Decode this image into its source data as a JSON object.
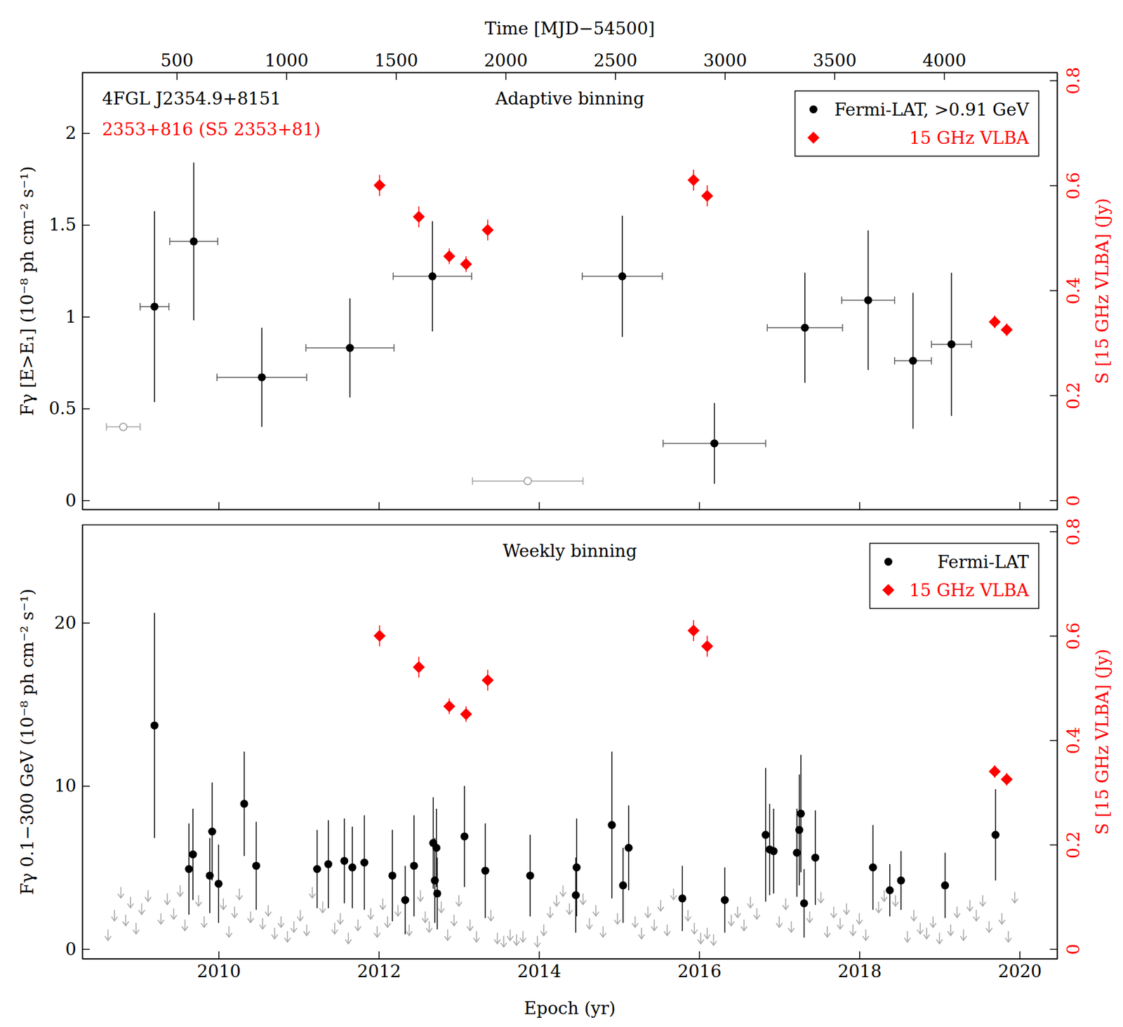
{
  "chart_data": [
    {
      "type": "scatter",
      "title": "Adaptive binning",
      "annotations": [
        {
          "text": "4FGL J2354.9+8151",
          "color": "#000000"
        },
        {
          "text": "2353+816 (S5 2353+81)",
          "color": "#ff0000"
        }
      ],
      "x2_label": "Time [MJD−54500]",
      "y_label": "Fγ [E>E₁] (10⁻⁸ ph cm⁻² s⁻¹)",
      "y2_label": "S [15 GHz VLBA] (Jy)",
      "xlim": [
        2008.3,
        2020.47
      ],
      "xticks": [
        2010,
        2012,
        2014,
        2016,
        2018,
        2020
      ],
      "x2lim": [
        70,
        4516
      ],
      "x2ticks": [
        500,
        1000,
        1500,
        2000,
        2500,
        3000,
        3500,
        4000
      ],
      "ylim": [
        -0.05,
        2.33
      ],
      "yticks": [
        0,
        0.5,
        1,
        1.5,
        2
      ],
      "y2lim": [
        -0.0175,
        0.815
      ],
      "y2ticks": [
        0,
        0.2,
        0.4,
        0.6,
        0.8
      ],
      "tick_labels": "y",
      "legend": "top-right",
      "series": [
        {
          "name": "Fermi-LAT, >0.91 GeV",
          "color": "#000000",
          "marker": "circle",
          "x": [
            2009.2,
            2009.69,
            2010.54,
            2011.64,
            2012.67,
            2015.04,
            2016.19,
            2017.32,
            2018.11,
            2018.67,
            2019.15
          ],
          "values": [
            1.055,
            1.41,
            0.67,
            0.83,
            1.22,
            1.22,
            0.31,
            0.94,
            1.09,
            0.76,
            0.85
          ],
          "errors": [
            0.52,
            0.43,
            0.27,
            0.27,
            0.3,
            0.33,
            0.22,
            0.3,
            0.38,
            0.37,
            0.39
          ],
          "x_errors": [
            0.18,
            0.3,
            0.56,
            0.55,
            0.49,
            0.5,
            0.64,
            0.47,
            0.33,
            0.23,
            0.25
          ]
        },
        {
          "color": "#a0a0a0",
          "marker": "open-circle",
          "x": [
            2008.81,
            2013.86
          ],
          "values": [
            0.4,
            0.105
          ],
          "x_errors": [
            0.21,
            0.69
          ]
        },
        {
          "name": "15 GHz VLBA",
          "color": "#ff0000",
          "marker": "diamond",
          "axis": "y2",
          "x": [
            2012.01,
            2012.5,
            2012.88,
            2013.09,
            2013.36,
            2015.93,
            2016.1,
            2019.69,
            2019.84
          ],
          "values": [
            0.6,
            0.54,
            0.465,
            0.45,
            0.515,
            0.61,
            0.58,
            0.34,
            0.325
          ],
          "errors": [
            0.02,
            0.02,
            0.015,
            0.015,
            0.02,
            0.02,
            0.02,
            0.012,
            0.012
          ]
        }
      ]
    },
    {
      "type": "scatter",
      "title": "Weekly binning",
      "x_label": "Epoch (yr)",
      "y_label": "Fγ 0.1−300 GeV (10⁻⁸ ph cm⁻² s⁻¹)",
      "y2_label": "S [15 GHz VLBA] (Jy)",
      "xlim": [
        2008.3,
        2020.47
      ],
      "xticks": [
        2010,
        2012,
        2014,
        2016,
        2018,
        2020
      ],
      "ylim": [
        -0.6,
        26
      ],
      "yticks": [
        0,
        10,
        20
      ],
      "y2lim": [
        -0.01875,
        0.8125
      ],
      "y2ticks": [
        0,
        0.2,
        0.4,
        0.6,
        0.8
      ],
      "legend": "top-right",
      "series": [
        {
          "name": "Fermi-LAT",
          "color": "#000000",
          "marker": "circle",
          "x": [
            2009.2,
            2009.63,
            2009.68,
            2009.89,
            2009.92,
            2010.0,
            2010.32,
            2010.47,
            2011.23,
            2011.37,
            2011.57,
            2011.67,
            2011.82,
            2012.17,
            2012.33,
            2012.44,
            2012.68,
            2012.7,
            2012.72,
            2012.73,
            2013.07,
            2013.33,
            2013.89,
            2014.46,
            2014.47,
            2014.91,
            2015.05,
            2015.12,
            2015.79,
            2016.32,
            2016.83,
            2016.88,
            2016.93,
            2017.22,
            2017.25,
            2017.27,
            2017.31,
            2017.45,
            2018.17,
            2018.38,
            2018.52,
            2019.07,
            2019.7
          ],
          "values": [
            13.7,
            4.9,
            5.8,
            4.5,
            7.2,
            4.0,
            8.9,
            5.1,
            4.9,
            5.2,
            5.4,
            5.0,
            5.3,
            4.5,
            3.0,
            5.1,
            6.5,
            4.2,
            6.2,
            3.4,
            6.9,
            4.8,
            4.5,
            3.3,
            5.0,
            7.6,
            3.9,
            6.2,
            3.1,
            3.0,
            7.0,
            6.1,
            6.0,
            5.9,
            7.3,
            8.3,
            2.8,
            5.6,
            5.0,
            3.6,
            4.2,
            3.9,
            7.0
          ],
          "errors": [
            6.9,
            2.8,
            2.8,
            2.3,
            3.0,
            2.4,
            3.2,
            2.7,
            2.4,
            2.7,
            2.6,
            2.5,
            2.9,
            2.8,
            2.1,
            3.1,
            2.8,
            2.6,
            2.4,
            2.2,
            3.1,
            2.9,
            2.5,
            2.3,
            3.0,
            4.5,
            2.3,
            2.6,
            2.0,
            2.0,
            4.1,
            2.8,
            2.6,
            2.7,
            3.4,
            3.6,
            2.1,
            2.9,
            2.6,
            1.6,
            1.8,
            2.0,
            2.8
          ]
        },
        {
          "color": "#a8a8a8",
          "marker": "arrow-down",
          "x": [
            2008.62,
            2008.7,
            2008.78,
            2008.84,
            2008.9,
            2008.97,
            2009.04,
            2009.12,
            2009.28,
            2009.36,
            2009.44,
            2009.52,
            2009.58,
            2009.75,
            2009.82,
            2010.06,
            2010.13,
            2010.2,
            2010.26,
            2010.4,
            2010.55,
            2010.62,
            2010.7,
            2010.78,
            2010.86,
            2010.94,
            2011.02,
            2011.1,
            2011.17,
            2011.3,
            2011.45,
            2011.52,
            2011.62,
            2011.74,
            2011.9,
            2011.98,
            2012.05,
            2012.11,
            2012.24,
            2012.38,
            2012.52,
            2012.58,
            2012.63,
            2012.78,
            2012.86,
            2012.94,
            2013.0,
            2013.14,
            2013.22,
            2013.4,
            2013.48,
            2013.56,
            2013.64,
            2013.72,
            2013.8,
            2013.98,
            2014.06,
            2014.14,
            2014.22,
            2014.3,
            2014.38,
            2014.55,
            2014.63,
            2014.71,
            2014.8,
            2014.98,
            2015.2,
            2015.28,
            2015.36,
            2015.44,
            2015.52,
            2015.6,
            2015.68,
            2015.86,
            2015.94,
            2016.02,
            2016.1,
            2016.18,
            2016.4,
            2016.48,
            2016.56,
            2016.64,
            2016.72,
            2017.0,
            2017.08,
            2017.15,
            2017.38,
            2017.52,
            2017.6,
            2017.68,
            2017.76,
            2017.84,
            2017.92,
            2018.0,
            2018.08,
            2018.24,
            2018.31,
            2018.45,
            2018.6,
            2018.68,
            2018.76,
            2018.84,
            2018.92,
            2019.0,
            2019.14,
            2019.22,
            2019.3,
            2019.38,
            2019.46,
            2019.54,
            2019.62,
            2019.78,
            2019.86,
            2019.94
          ],
          "values": [
            1.2,
            2.4,
            3.8,
            2.1,
            3.2,
            1.6,
            2.8,
            3.6,
            2.2,
            3.4,
            2.5,
            3.9,
            1.8,
            3.3,
            2.0,
            3.1,
            1.4,
            2.6,
            3.7,
            2.3,
            1.9,
            2.7,
            1.3,
            2.0,
            1.1,
            1.7,
            2.4,
            1.5,
            3.8,
            2.9,
            1.6,
            2.2,
            1.0,
            1.8,
            2.5,
            1.4,
            3.1,
            2.0,
            2.7,
            1.5,
            3.6,
            2.3,
            1.7,
            2.9,
            1.2,
            2.1,
            3.3,
            1.8,
            1.1,
            2.4,
            1.0,
            0.8,
            1.2,
            0.9,
            1.1,
            0.8,
            1.5,
            2.6,
            3.3,
            3.9,
            2.8,
            3.4,
            1.9,
            2.7,
            1.4,
            2.2,
            2.0,
            1.3,
            2.6,
            1.8,
            3.0,
            1.5,
            3.7,
            2.4,
            1.6,
            1.0,
            1.3,
            0.9,
            2.1,
            2.6,
            1.8,
            3.2,
            2.5,
            2.0,
            3.1,
            1.7,
            2.3,
            3.5,
            1.4,
            2.6,
            1.9,
            2.8,
            1.5,
            2.2,
            1.2,
            2.9,
            3.6,
            3.3,
            1.1,
            2.4,
            1.6,
            1.3,
            2.0,
            1.0,
            1.5,
            2.6,
            1.2,
            3.0,
            2.4,
            3.3,
            1.7,
            2.2,
            1.1,
            3.5
          ]
        },
        {
          "name": "15 GHz VLBA",
          "color": "#ff0000",
          "marker": "diamond",
          "axis": "y2",
          "x": [
            2012.01,
            2012.5,
            2012.88,
            2013.09,
            2013.36,
            2015.93,
            2016.1,
            2019.69,
            2019.84
          ],
          "values": [
            0.6,
            0.54,
            0.465,
            0.45,
            0.515,
            0.61,
            0.58,
            0.34,
            0.325
          ],
          "errors": [
            0.02,
            0.02,
            0.015,
            0.015,
            0.02,
            0.02,
            0.02,
            0.012,
            0.012
          ]
        }
      ]
    }
  ]
}
